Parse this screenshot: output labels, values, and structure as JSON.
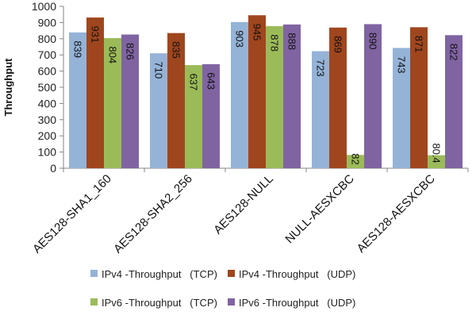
{
  "chart_data": {
    "type": "bar",
    "title": "",
    "xlabel": "",
    "ylabel": "Throughput",
    "ylim": [
      0,
      1000
    ],
    "ytick_step": 100,
    "grid": false,
    "legend_position": "bottom",
    "categories": [
      "AES128-SHA1_160",
      "AES128-SHA2_256",
      "AES128-NULL",
      "NULL-AESXCBC",
      "AES128-AESXCBC"
    ],
    "series": [
      {
        "name": "IPv4 -Throughput   (TCP)",
        "color": "#95b3d7",
        "values": [
          839,
          710,
          903,
          723,
          743
        ],
        "labels": [
          "839",
          "710",
          "903",
          "723",
          "743"
        ]
      },
      {
        "name": "IPv4 -Throughput   (UDP)",
        "color": "#a0461e",
        "values": [
          931,
          835,
          945,
          869,
          871
        ],
        "labels": [
          "931",
          "835",
          "945",
          "869",
          "871"
        ]
      },
      {
        "name": "IPv6 -Throughput   (TCP)",
        "color": "#9bbb59",
        "values": [
          804,
          637,
          878,
          82,
          80.4
        ],
        "labels": [
          "804",
          "637",
          "878",
          "82",
          "80.4"
        ]
      },
      {
        "name": "IPv6 -Throughput   (UDP)",
        "color": "#8064a2",
        "values": [
          826,
          643,
          888,
          890,
          822
        ],
        "labels": [
          "826",
          "643",
          "888",
          "890",
          "822"
        ]
      }
    ]
  }
}
